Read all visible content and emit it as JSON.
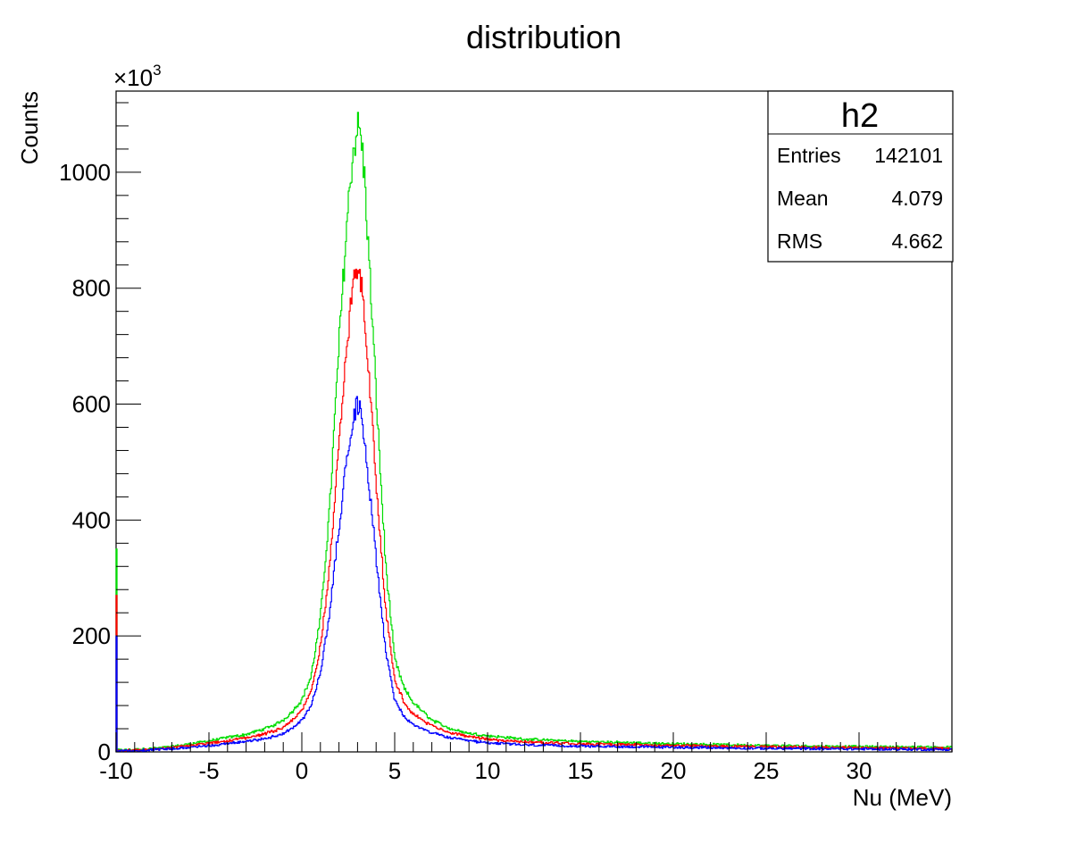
{
  "chart_data": {
    "type": "line",
    "title": "distribution",
    "xlabel": "Nu (MeV)",
    "ylabel": "Counts",
    "y_exponent_label": "×10",
    "y_exponent_power": "3",
    "xlim": [
      -10,
      35
    ],
    "ylim": [
      0,
      1140
    ],
    "x_ticks": [
      -10,
      -5,
      0,
      5,
      10,
      15,
      20,
      25,
      30
    ],
    "x_tick_labels": [
      "-10",
      "-5",
      "0",
      "5",
      "10",
      "15",
      "20",
      "25",
      "30"
    ],
    "y_ticks": [
      0,
      200,
      400,
      600,
      800,
      1000
    ],
    "y_tick_labels": [
      "0",
      "200",
      "400",
      "600",
      "800",
      "1000"
    ],
    "y_scale_note": "values in units of 10^3 counts",
    "grid": false,
    "series": [
      {
        "color": "#00dd00",
        "x": [
          -10,
          -9.9,
          -9,
          -8,
          -7,
          -6,
          -5,
          -4,
          -3,
          -2,
          -1.5,
          -1,
          -0.5,
          0,
          0.5,
          1,
          1.5,
          2,
          2.4,
          2.7,
          3,
          3.2,
          3.4,
          3.6,
          3.9,
          4.2,
          4.5,
          5,
          5.5,
          6,
          6.5,
          7,
          8,
          9,
          10,
          12,
          15,
          20,
          25,
          30,
          35
        ],
        "values": [
          350,
          3,
          4,
          6,
          9,
          14,
          19,
          25,
          30,
          40,
          46,
          55,
          70,
          90,
          130,
          230,
          420,
          700,
          900,
          1020,
          1080,
          1060,
          980,
          860,
          680,
          500,
          330,
          160,
          110,
          85,
          70,
          55,
          40,
          32,
          28,
          22,
          18,
          14,
          11,
          9,
          8
        ]
      },
      {
        "color": "#ff0000",
        "x": [
          -10,
          -9.9,
          -9,
          -8,
          -7,
          -6,
          -5,
          -4,
          -3,
          -2,
          -1.5,
          -1,
          -0.5,
          0,
          0.5,
          1,
          1.5,
          2,
          2.4,
          2.7,
          3,
          3.2,
          3.4,
          3.6,
          3.9,
          4.2,
          4.5,
          5,
          5.5,
          6,
          6.5,
          7,
          8,
          9,
          10,
          12,
          15,
          20,
          25,
          30,
          35
        ],
        "values": [
          270,
          2,
          3,
          5,
          7,
          11,
          15,
          19,
          24,
          31,
          36,
          43,
          55,
          72,
          105,
          180,
          320,
          530,
          690,
          790,
          830,
          810,
          750,
          660,
          520,
          380,
          250,
          125,
          85,
          65,
          55,
          45,
          33,
          27,
          22,
          17,
          14,
          11,
          9,
          7,
          6
        ]
      },
      {
        "color": "#0000ff",
        "x": [
          -10,
          -9.9,
          -9,
          -8,
          -7,
          -6,
          -5,
          -4,
          -3,
          -2,
          -1.5,
          -1,
          -0.5,
          0,
          0.5,
          1,
          1.5,
          2,
          2.4,
          2.7,
          3,
          3.2,
          3.4,
          3.6,
          3.9,
          4.2,
          4.5,
          5,
          5.5,
          6,
          6.5,
          7,
          8,
          9,
          10,
          12,
          15,
          20,
          25,
          30,
          35
        ],
        "values": [
          200,
          2,
          2,
          4,
          5,
          8,
          11,
          14,
          18,
          23,
          27,
          32,
          41,
          55,
          80,
          135,
          240,
          390,
          500,
          570,
          600,
          585,
          540,
          470,
          370,
          270,
          180,
          90,
          60,
          47,
          40,
          33,
          24,
          19,
          16,
          12,
          10,
          8,
          6,
          5,
          4
        ]
      }
    ]
  },
  "stats_box": {
    "name": "h2",
    "rows": [
      {
        "label": "Entries",
        "value": "142101"
      },
      {
        "label": "Mean",
        "value": "4.079"
      },
      {
        "label": "RMS",
        "value": "4.662"
      }
    ]
  }
}
